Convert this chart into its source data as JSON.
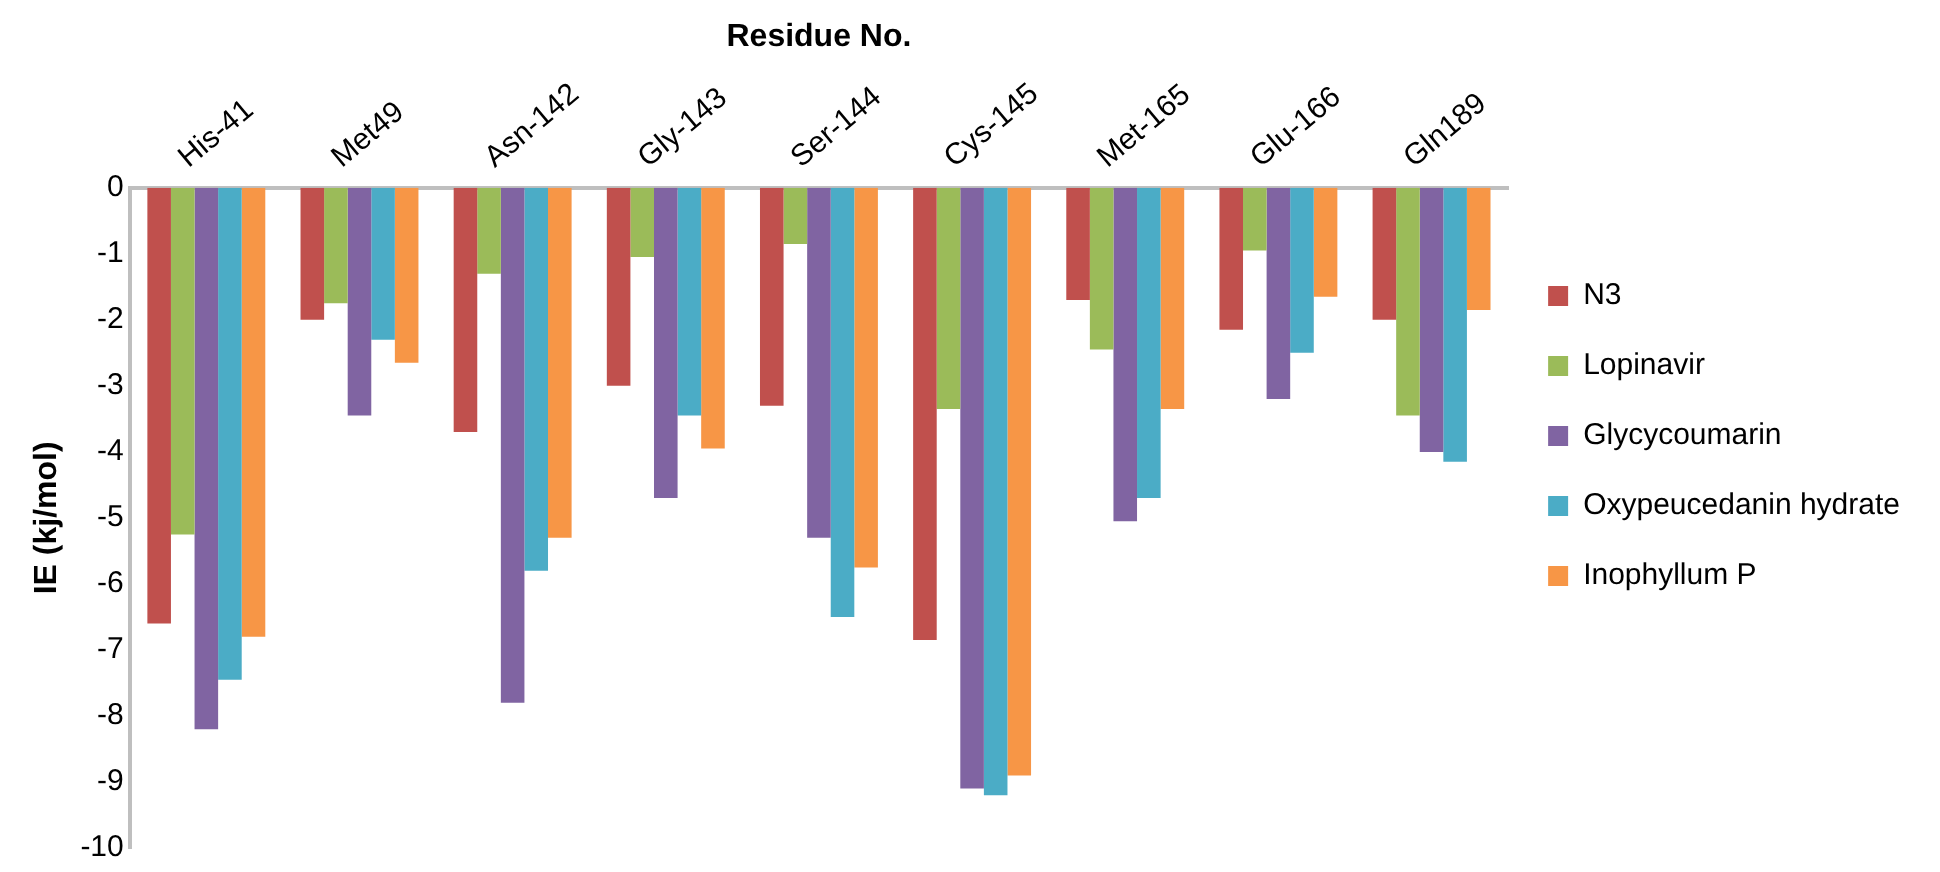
{
  "chart_data": {
    "type": "bar",
    "xlabel": "Residue No.",
    "ylabel": "IE (kj/mol)",
    "categories": [
      "His-41",
      "Met49",
      "Asn-142",
      "Gly-143",
      "Ser-144",
      "Cys-145",
      "Met-165",
      "Glu-166",
      "Gln189"
    ],
    "series": [
      {
        "name": "N3",
        "color": "#c0504d",
        "values": [
          -6.6,
          -2.0,
          -3.7,
          -3.0,
          -3.3,
          -6.85,
          -1.7,
          -2.15,
          -2.0
        ]
      },
      {
        "name": "Lopinavir",
        "color": "#9bbb59",
        "values": [
          -5.25,
          -1.75,
          -1.3,
          -1.05,
          -0.85,
          -3.35,
          -2.45,
          -0.95,
          -3.45
        ]
      },
      {
        "name": "Glycycoumarin",
        "color": "#8064a2",
        "values": [
          -8.2,
          -3.45,
          -7.8,
          -4.7,
          -5.3,
          -9.1,
          -5.05,
          -3.2,
          -4.0
        ]
      },
      {
        "name": "Oxypeucedanin hydrate",
        "color": "#4bacc6",
        "values": [
          -7.45,
          -2.3,
          -5.8,
          -3.45,
          -6.5,
          -9.2,
          -4.7,
          -2.5,
          -4.15
        ]
      },
      {
        "name": "Inophyllum P",
        "color": "#f79646",
        "values": [
          -6.8,
          -2.65,
          -5.3,
          -3.95,
          -5.75,
          -8.9,
          -3.35,
          -1.65,
          -1.85
        ]
      }
    ],
    "ylim": [
      -10,
      0
    ],
    "yticks": [
      -10,
      -9,
      -8,
      -7,
      -6,
      -5,
      -4,
      -3,
      -2,
      -1,
      0
    ],
    "grid": false,
    "legend": "right"
  }
}
